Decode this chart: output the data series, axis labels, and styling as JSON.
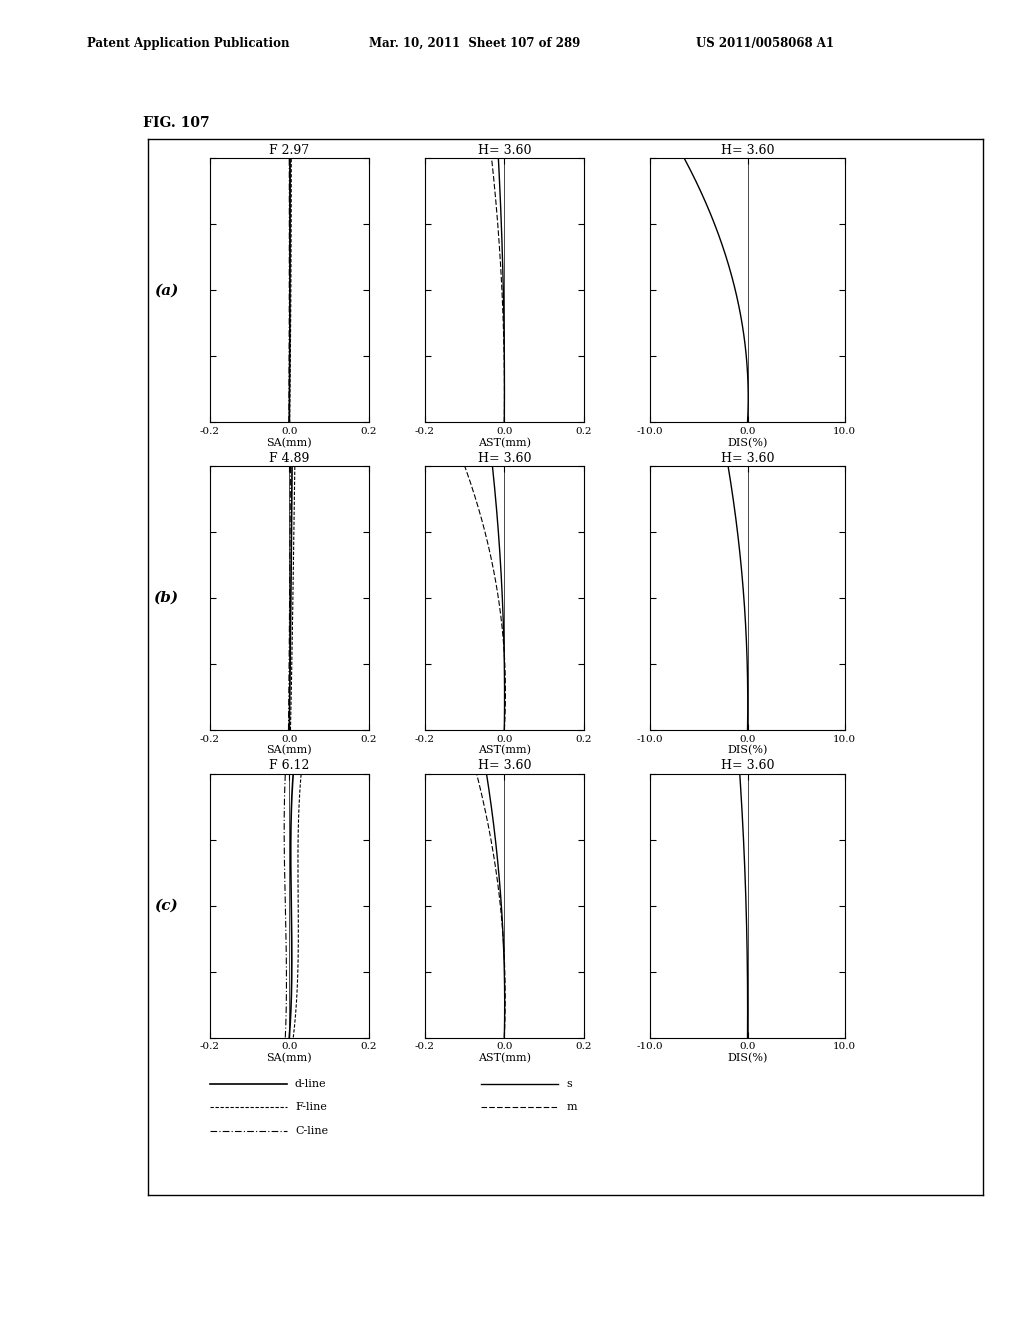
{
  "title": "FIG. 107",
  "header_left": "Patent Application Publication",
  "header_mid": "Mar. 10, 2011  Sheet 107 of 289",
  "header_right": "US 2011/0058068 A1",
  "rows": [
    "(a)",
    "(b)",
    "(c)"
  ],
  "sa_titles": [
    "F 2.97",
    "F 4.89",
    "F 6.12"
  ],
  "ast_titles": [
    "H= 3.60",
    "H= 3.60",
    "H= 3.60"
  ],
  "dis_titles": [
    "H= 3.60",
    "H= 3.60",
    "H= 3.60"
  ],
  "sa_xlim": [
    -0.2,
    0.2
  ],
  "ast_xlim": [
    -0.2,
    0.2
  ],
  "dis_xlim": [
    -10.0,
    10.0
  ],
  "ylim": [
    0.0,
    1.0
  ],
  "sa_xlabel": "SA(mm)",
  "ast_xlabel": "AST(mm)",
  "dis_xlabel": "DIS(%)",
  "sa_xticks": [
    -0.2,
    0.0,
    0.2
  ],
  "ast_xticks": [
    -0.2,
    0.0,
    0.2
  ],
  "dis_xticks": [
    -10.0,
    0.0,
    10.0
  ],
  "yticks": [
    0.0,
    0.25,
    0.5,
    0.75,
    1.0
  ],
  "background": "#ffffff"
}
